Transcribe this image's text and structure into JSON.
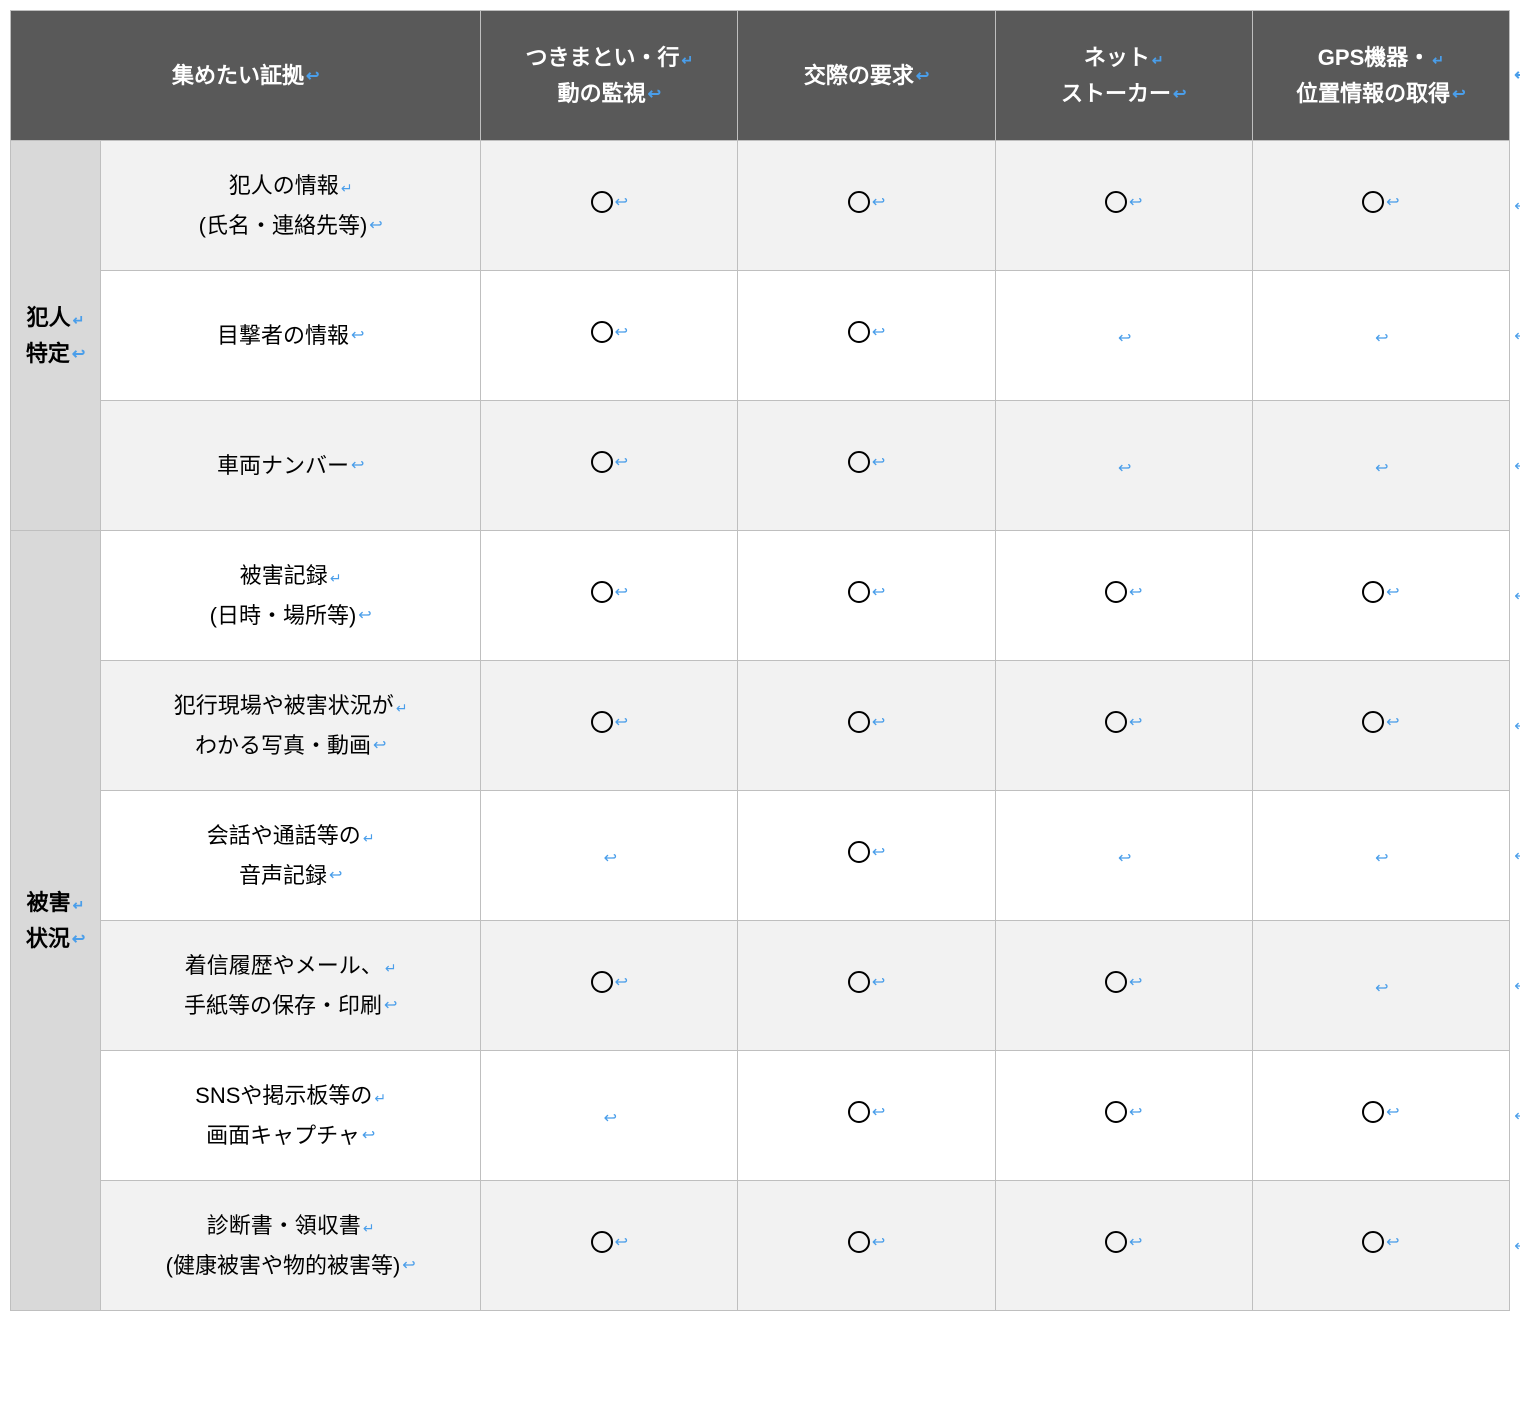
{
  "colors": {
    "header_bg": "#595959",
    "header_fg": "#ffffff",
    "cat_bg": "#d9d9d9",
    "shaded_bg": "#f2f2f2",
    "plain_bg": "#ffffff",
    "border": "#bfbfbf",
    "para_mark": "#4a9eea"
  },
  "marks": {
    "circle": "〇",
    "para": "↩",
    "lb": "↵"
  },
  "header": {
    "label": "集めたい証拠",
    "cols": [
      {
        "l1": "つきまとい・行",
        "l2": "動の監視"
      },
      {
        "l1": "交際の要求",
        "l2": ""
      },
      {
        "l1": "ネット",
        "l2": "ストーカー"
      },
      {
        "l1": "GPS機器・",
        "l2": "位置情報の取得"
      }
    ]
  },
  "groups": [
    {
      "cat_l1": "犯人",
      "cat_l2": "特定",
      "rows": [
        {
          "shaded": true,
          "l1": "犯人の情報",
          "l2": "(氏名・連絡先等)",
          "cells": [
            "o",
            "o",
            "o",
            "o"
          ]
        },
        {
          "shaded": false,
          "l1": "目撃者の情報",
          "l2": "",
          "cells": [
            "o",
            "o",
            "",
            ""
          ]
        },
        {
          "shaded": true,
          "l1": "車両ナンバー",
          "l2": "",
          "cells": [
            "o",
            "o",
            "",
            ""
          ]
        }
      ]
    },
    {
      "cat_l1": "被害",
      "cat_l2": "状況",
      "rows": [
        {
          "shaded": false,
          "l1": "被害記録",
          "l2": "(日時・場所等)",
          "cells": [
            "o",
            "o",
            "o",
            "o"
          ]
        },
        {
          "shaded": true,
          "l1": "犯行現場や被害状況が",
          "l2": "わかる写真・動画",
          "cells": [
            "o",
            "o",
            "o",
            "o"
          ]
        },
        {
          "shaded": false,
          "l1": "会話や通話等の",
          "l2": "音声記録",
          "cells": [
            "",
            "o",
            "",
            ""
          ]
        },
        {
          "shaded": true,
          "l1": "着信履歴やメール、",
          "l2": "手紙等の保存・印刷",
          "cells": [
            "o",
            "o",
            "o",
            ""
          ]
        },
        {
          "shaded": false,
          "l1": "SNSや掲示板等の",
          "l2": "画面キャプチャ",
          "cells": [
            "",
            "o",
            "o",
            "o"
          ]
        },
        {
          "shaded": true,
          "l1": "診断書・領収書",
          "l2": "(健康被害や物的被害等)",
          "cells": [
            "o",
            "o",
            "o",
            "o"
          ]
        }
      ]
    }
  ]
}
